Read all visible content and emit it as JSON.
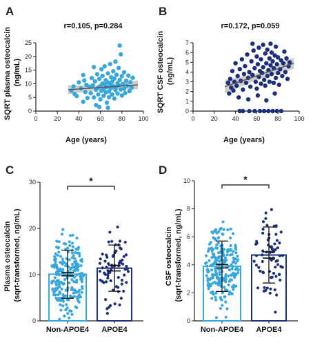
{
  "panels": [
    {
      "id": "A",
      "label": "A"
    },
    {
      "id": "B",
      "label": "B"
    },
    {
      "id": "C",
      "label": "C"
    },
    {
      "id": "D",
      "label": "D"
    }
  ],
  "colors": {
    "light_blue": "#3aa7dc",
    "dark_blue": "#1e2f7a",
    "fit_line": "#555555",
    "ci_band": "#bdbdbd"
  },
  "chart_data": [
    {
      "panel": "A",
      "type": "scatter",
      "title": "r=0.105, p=0.284",
      "xlabel": "Age (years)",
      "ylabel": "SQRT plasma osteocalcin\n(ng/mL)",
      "xlim": [
        0,
        100
      ],
      "ylim": [
        0,
        25
      ],
      "xticks": [
        "0",
        "20",
        "40",
        "60",
        "80",
        "100"
      ],
      "yticks": [
        "0",
        "5",
        "10",
        "15",
        "20",
        "25"
      ],
      "fit": {
        "x": [
          30,
          95
        ],
        "y": [
          7.8,
          9.6
        ]
      },
      "ci": {
        "x": [
          30,
          62,
          95
        ],
        "upper": [
          9.5,
          9.0,
          11.2
        ],
        "lower": [
          6.1,
          8.1,
          8.0
        ]
      },
      "points": [
        [
          33,
          7.5
        ],
        [
          35,
          9.0
        ],
        [
          36,
          6.3
        ],
        [
          38,
          5.5
        ],
        [
          40,
          10.5
        ],
        [
          42,
          8.3
        ],
        [
          44,
          3.4
        ],
        [
          45,
          11.2
        ],
        [
          46,
          7.0
        ],
        [
          47,
          9.6
        ],
        [
          48,
          4.8
        ],
        [
          50,
          8.9
        ],
        [
          51,
          6.6
        ],
        [
          52,
          12.1
        ],
        [
          53,
          9.4
        ],
        [
          54,
          5.0
        ],
        [
          55,
          10.9
        ],
        [
          56,
          7.8
        ],
        [
          56,
          2.2
        ],
        [
          57,
          13.5
        ],
        [
          58,
          8.6
        ],
        [
          58,
          6.1
        ],
        [
          59,
          11.8
        ],
        [
          60,
          9.2
        ],
        [
          60,
          4.3
        ],
        [
          61,
          15.3
        ],
        [
          61,
          7.4
        ],
        [
          62,
          10.1
        ],
        [
          62,
          12.9
        ],
        [
          63,
          5.6
        ],
        [
          63,
          8.1
        ],
        [
          64,
          16.4
        ],
        [
          64,
          9.7
        ],
        [
          65,
          6.9
        ],
        [
          65,
          11.3
        ],
        [
          66,
          3.1
        ],
        [
          66,
          8.8
        ],
        [
          67,
          13.8
        ],
        [
          67,
          10.5
        ],
        [
          68,
          7.2
        ],
        [
          68,
          5.1
        ],
        [
          69,
          9.9
        ],
        [
          69,
          17.2
        ],
        [
          70,
          12.4
        ],
        [
          70,
          8.4
        ],
        [
          71,
          6.1
        ],
        [
          71,
          10.8
        ],
        [
          72,
          14.6
        ],
        [
          72,
          9.1
        ],
        [
          73,
          4.6
        ],
        [
          73,
          11.9
        ],
        [
          74,
          7.7
        ],
        [
          74,
          18.1
        ],
        [
          75,
          8.9
        ],
        [
          75,
          13.3
        ],
        [
          76,
          10.2
        ],
        [
          76,
          6.4
        ],
        [
          77,
          15.8
        ],
        [
          77,
          9.5
        ],
        [
          78,
          24.0
        ],
        [
          78,
          11.4
        ],
        [
          79,
          7.9
        ],
        [
          79,
          20.8
        ],
        [
          80,
          12.8
        ],
        [
          80,
          5.7
        ],
        [
          81,
          10.0
        ],
        [
          82,
          8.2
        ],
        [
          82,
          14.2
        ],
        [
          83,
          6.6
        ],
        [
          84,
          11.1
        ],
        [
          85,
          9.3
        ],
        [
          86,
          13.0
        ],
        [
          87,
          7.3
        ],
        [
          88,
          10.6
        ],
        [
          89,
          8.6
        ],
        [
          90,
          12.2
        ],
        [
          59,
          1.5
        ],
        [
          67,
          1.2
        ],
        [
          54,
          16.1
        ],
        [
          44,
          13.2
        ]
      ]
    },
    {
      "panel": "B",
      "type": "scatter",
      "title": "r=0.172, p=0.059",
      "xlabel": "Age (years)",
      "ylabel": "SQRT CSF osteocalcin\n(ng/mL)",
      "xlim": [
        0,
        100
      ],
      "ylim": [
        0,
        7
      ],
      "xticks": [
        "0",
        "20",
        "40",
        "60",
        "80",
        "100"
      ],
      "yticks": [
        "0",
        "1",
        "2",
        "3",
        "4",
        "5",
        "6",
        "7"
      ],
      "fit": {
        "x": [
          30,
          95
        ],
        "y": [
          2.5,
          4.9
        ]
      },
      "ci": {
        "x": [
          30,
          62,
          95
        ],
        "upper": [
          3.2,
          3.9,
          5.5
        ],
        "lower": [
          1.8,
          3.3,
          4.3
        ]
      },
      "points": [
        [
          33,
          2.9
        ],
        [
          34,
          1.8
        ],
        [
          35,
          3.3
        ],
        [
          36,
          2.4
        ],
        [
          37,
          4.1
        ],
        [
          38,
          2.1
        ],
        [
          39,
          3.0
        ],
        [
          40,
          4.9
        ],
        [
          41,
          2.6
        ],
        [
          42,
          3.6
        ],
        [
          43,
          1.4
        ],
        [
          44,
          4.3
        ],
        [
          45,
          3.1
        ],
        [
          46,
          5.3
        ],
        [
          47,
          2.2
        ],
        [
          48,
          3.8
        ],
        [
          49,
          4.6
        ],
        [
          50,
          2.9
        ],
        [
          51,
          5.8
        ],
        [
          52,
          3.4
        ],
        [
          53,
          4.0
        ],
        [
          54,
          2.5
        ],
        [
          55,
          5.1
        ],
        [
          56,
          3.7
        ],
        [
          57,
          6.2
        ],
        [
          58,
          4.4
        ],
        [
          59,
          3.0
        ],
        [
          60,
          5.6
        ],
        [
          60,
          2.3
        ],
        [
          61,
          4.8
        ],
        [
          62,
          3.5
        ],
        [
          62,
          6.5
        ],
        [
          63,
          4.1
        ],
        [
          64,
          2.8
        ],
        [
          64,
          5.3
        ],
        [
          65,
          3.9
        ],
        [
          66,
          6.8
        ],
        [
          66,
          4.5
        ],
        [
          67,
          3.2
        ],
        [
          68,
          5.9
        ],
        [
          68,
          2.6
        ],
        [
          69,
          4.9
        ],
        [
          70,
          3.6
        ],
        [
          70,
          6.3
        ],
        [
          71,
          4.2
        ],
        [
          72,
          5.4
        ],
        [
          72,
          3.0
        ],
        [
          73,
          4.7
        ],
        [
          74,
          6.0
        ],
        [
          74,
          3.8
        ],
        [
          75,
          5.1
        ],
        [
          76,
          2.9
        ],
        [
          76,
          4.4
        ],
        [
          77,
          5.7
        ],
        [
          78,
          3.4
        ],
        [
          78,
          6.6
        ],
        [
          79,
          4.8
        ],
        [
          80,
          3.9
        ],
        [
          80,
          5.5
        ],
        [
          81,
          2.7
        ],
        [
          82,
          4.3
        ],
        [
          83,
          5.2
        ],
        [
          84,
          3.6
        ],
        [
          85,
          4.9
        ],
        [
          86,
          6.1
        ],
        [
          87,
          4.0
        ],
        [
          88,
          5.4
        ],
        [
          89,
          3.3
        ],
        [
          90,
          4.6
        ],
        [
          91,
          5.0
        ],
        [
          44,
          0.0
        ],
        [
          47,
          0.0
        ],
        [
          53,
          0.0
        ],
        [
          58,
          0.0
        ],
        [
          63,
          0.0
        ],
        [
          67,
          0.0
        ],
        [
          71,
          0.0
        ],
        [
          75,
          0.0
        ],
        [
          79,
          0.0
        ],
        [
          83,
          0.0
        ],
        [
          52,
          1.2
        ],
        [
          61,
          1.6
        ],
        [
          69,
          1.1
        ],
        [
          77,
          1.8
        ],
        [
          56,
          6.9
        ],
        [
          73,
          6.9
        ]
      ]
    },
    {
      "panel": "C",
      "type": "bar",
      "ylabel": "Plasma osteocalcin\n(sqrt-transformed, ng/mL)",
      "categories": [
        "Non-APOE4",
        "APOE4"
      ],
      "values": [
        10.1,
        11.4
      ],
      "error_sd": [
        5.2,
        5.0
      ],
      "error_sem": [
        0.35,
        0.6
      ],
      "ylim": [
        0,
        30
      ],
      "yticks": [
        "0",
        "10",
        "20",
        "30"
      ],
      "significance": "*"
    },
    {
      "panel": "D",
      "type": "bar",
      "ylabel": "CSF osteocalcin\n(sqrt-transformed, ng/mL)",
      "categories": [
        "Non-APOE4",
        "APOE4"
      ],
      "values": [
        3.9,
        4.7
      ],
      "error_sd": [
        1.8,
        2.0
      ],
      "error_sem": [
        0.12,
        0.22
      ],
      "ylim": [
        0,
        10
      ],
      "yticks": [
        "0",
        "2",
        "4",
        "6",
        "8",
        "10"
      ],
      "significance": "*"
    }
  ]
}
